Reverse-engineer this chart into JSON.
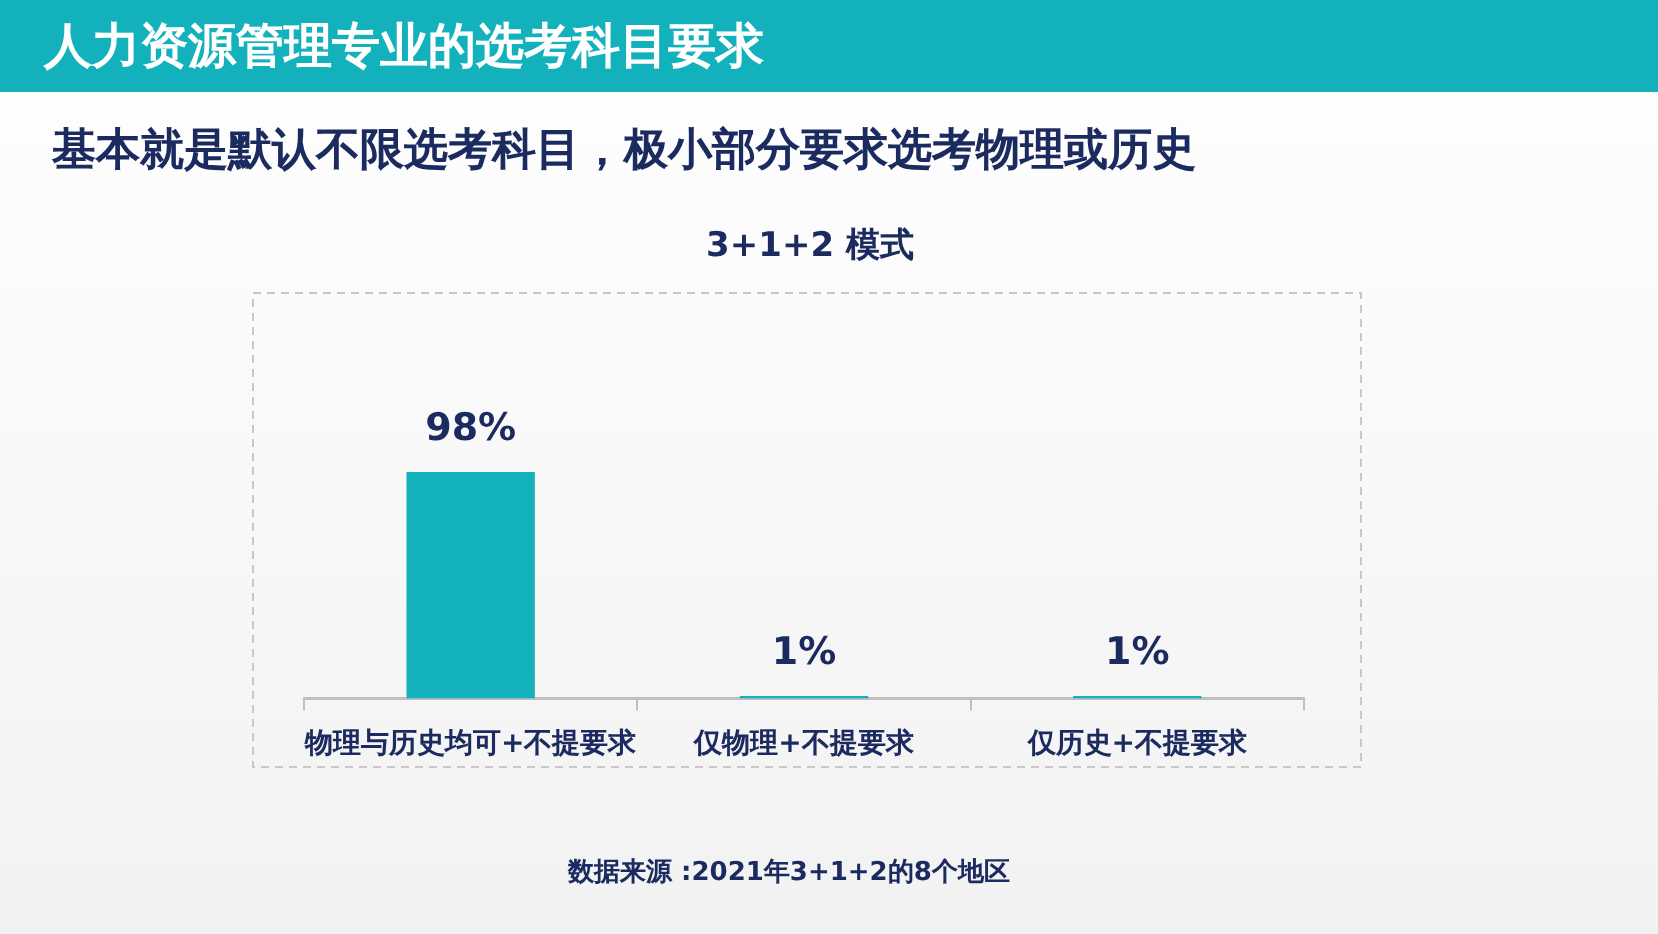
{
  "chart_data": {
    "type": "bar",
    "title": "人力资源管理专业的选考科目要求",
    "subtitle": "基本就是默认不限选考科目，极小部分要求选考物理或历史",
    "annotations": [
      "3+1+2 模式",
      "数据来源 :2021年3+1+2的8个地区"
    ],
    "categories": [
      "物理与历史均可+不提要求",
      "仅物理+不提要求",
      "仅历史+不提要求"
    ],
    "values": [
      98,
      1,
      1
    ],
    "value_labels": [
      "98%",
      "1%",
      "1%"
    ],
    "color": "#13b1bb",
    "grid": false,
    "legend": false,
    "tick_labels": "x"
  }
}
